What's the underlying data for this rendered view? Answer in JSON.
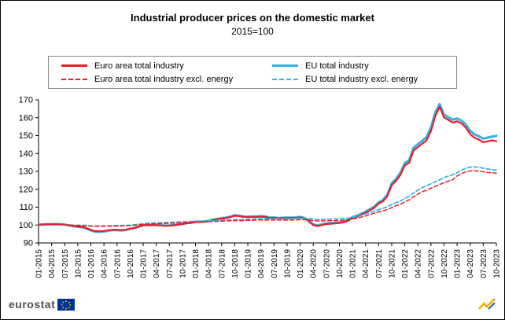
{
  "footer": {
    "brand": "eurostat"
  },
  "chart_data": {
    "type": "line",
    "title": "Industrial producer prices on the domestic market",
    "subtitle": "2015=100",
    "ylim": [
      90,
      170
    ],
    "y_ticks": [
      90,
      100,
      110,
      120,
      130,
      140,
      150,
      160,
      170
    ],
    "grid": false,
    "legend_position": "top",
    "x_unit": "month",
    "tick_step": 3,
    "x_tick_labels": [
      "01-2015",
      "04-2015",
      "07-2015",
      "10-2015",
      "01-2016",
      "04-2016",
      "07-2016",
      "10-2016",
      "01-2017",
      "04-2017",
      "07-2017",
      "10-2017",
      "01-2018",
      "04-2018",
      "07-2018",
      "10-2018",
      "01-2019",
      "04-2019",
      "07-2019",
      "10-2019",
      "01-2020",
      "04-2020",
      "07-2020",
      "10-2020",
      "01-2021",
      "04-2021",
      "07-2021",
      "10-2021",
      "01-2022",
      "04-2022",
      "07-2022",
      "10-2022",
      "01-2023",
      "04-2023",
      "07-2023",
      "10-2023"
    ],
    "series": [
      {
        "name": "Euro area total industry",
        "color": "#ed1c24",
        "dash": false,
        "width": 2.2,
        "values": [
          100.2,
          100.4,
          100.5,
          100.5,
          100.6,
          100.5,
          100.3,
          99.9,
          99.5,
          99.2,
          99.0,
          98.3,
          97.3,
          96.6,
          96.6,
          96.7,
          97.1,
          97.4,
          97.3,
          97.2,
          97.4,
          98.0,
          98.4,
          99.2,
          99.9,
          100.0,
          99.9,
          100.0,
          99.8,
          99.6,
          99.7,
          99.9,
          100.2,
          100.6,
          101.0,
          101.2,
          101.7,
          101.7,
          101.8,
          102.1,
          102.8,
          103.2,
          103.6,
          103.9,
          104.4,
          105.2,
          105.0,
          104.5,
          104.4,
          104.5,
          104.5,
          104.7,
          104.5,
          103.9,
          104.0,
          103.7,
          103.8,
          103.9,
          103.9,
          104.0,
          104.3,
          103.7,
          102.1,
          100.0,
          99.4,
          100.0,
          100.6,
          100.7,
          100.9,
          101.1,
          101.5,
          102.4,
          104.0,
          104.6,
          105.8,
          106.9,
          108.3,
          109.7,
          112.0,
          113.3,
          116.1,
          122.4,
          124.7,
          128.1,
          133.3,
          134.8,
          141.7,
          143.6,
          145.5,
          147.3,
          152.7,
          161.0,
          166.2,
          160.2,
          158.8,
          157.3,
          158.0,
          156.8,
          154.5,
          150.8,
          148.8,
          147.8,
          146.3,
          146.8,
          147.3,
          146.9
        ]
      },
      {
        "name": "EU total industry",
        "color": "#33b3e5",
        "dash": false,
        "width": 3,
        "values": [
          100.2,
          100.3,
          100.4,
          100.4,
          100.5,
          100.4,
          100.2,
          99.8,
          99.4,
          99.0,
          98.8,
          98.1,
          97.0,
          96.3,
          96.2,
          96.4,
          96.8,
          97.2,
          97.1,
          97.0,
          97.2,
          97.9,
          98.3,
          99.1,
          99.9,
          100.1,
          100.0,
          100.1,
          99.9,
          99.7,
          99.8,
          100.0,
          100.3,
          100.7,
          101.1,
          101.4,
          101.9,
          101.9,
          102.0,
          102.3,
          103.0,
          103.5,
          103.9,
          104.2,
          104.7,
          105.5,
          105.3,
          104.8,
          104.7,
          104.8,
          104.8,
          105.0,
          104.8,
          104.2,
          104.3,
          104.0,
          104.1,
          104.2,
          104.2,
          104.3,
          104.6,
          104.0,
          102.4,
          100.4,
          99.8,
          100.4,
          101.0,
          101.1,
          101.3,
          101.5,
          101.9,
          102.8,
          104.5,
          105.1,
          106.3,
          107.5,
          108.9,
          110.3,
          112.7,
          114.1,
          117.0,
          123.4,
          125.8,
          129.3,
          134.6,
          136.2,
          143.2,
          145.2,
          147.2,
          149.1,
          154.6,
          163.0,
          167.6,
          161.8,
          160.3,
          158.9,
          159.6,
          158.4,
          156.2,
          152.6,
          150.7,
          149.7,
          148.3,
          148.9,
          149.5,
          149.9
        ]
      },
      {
        "name": "Euro area total industry excl. energy",
        "color": "#ed1c24",
        "dash": true,
        "width": 1.5,
        "values": [
          100.1,
          100.1,
          100.2,
          100.2,
          100.2,
          100.2,
          100.1,
          100.0,
          99.9,
          99.8,
          99.7,
          99.6,
          99.4,
          99.3,
          99.3,
          99.3,
          99.4,
          99.4,
          99.4,
          99.5,
          99.6,
          99.7,
          99.9,
          100.1,
          100.4,
          100.6,
          100.7,
          100.8,
          100.9,
          100.9,
          101.0,
          101.1,
          101.2,
          101.3,
          101.4,
          101.5,
          101.6,
          101.7,
          101.8,
          101.9,
          102.0,
          102.1,
          102.2,
          102.3,
          102.4,
          102.5,
          102.5,
          102.5,
          102.6,
          102.7,
          102.8,
          102.9,
          102.9,
          102.8,
          102.8,
          102.8,
          102.8,
          102.8,
          102.8,
          102.9,
          103.0,
          103.0,
          102.9,
          102.5,
          102.3,
          102.3,
          102.4,
          102.5,
          102.5,
          102.6,
          102.7,
          102.9,
          103.4,
          103.8,
          104.4,
          105.1,
          105.9,
          106.6,
          107.3,
          108.0,
          108.7,
          109.8,
          110.8,
          111.6,
          113.0,
          114.1,
          115.8,
          117.3,
          118.6,
          119.6,
          120.6,
          121.6,
          122.6,
          123.7,
          124.6,
          125.3,
          127.5,
          128.8,
          129.8,
          130.3,
          130.4,
          130.2,
          129.8,
          129.4,
          129.2,
          129.0
        ]
      },
      {
        "name": "EU total industry excl. energy",
        "color": "#33b3e5",
        "dash": true,
        "width": 1.7,
        "values": [
          100.1,
          100.1,
          100.2,
          100.2,
          100.3,
          100.3,
          100.2,
          100.1,
          100.0,
          99.9,
          99.9,
          99.8,
          99.6,
          99.5,
          99.5,
          99.5,
          99.6,
          99.7,
          99.7,
          99.8,
          99.9,
          100.0,
          100.2,
          100.4,
          100.8,
          101.0,
          101.1,
          101.2,
          101.3,
          101.4,
          101.5,
          101.6,
          101.7,
          101.8,
          101.9,
          102.0,
          102.1,
          102.2,
          102.3,
          102.4,
          102.5,
          102.6,
          102.7,
          102.8,
          102.9,
          103.0,
          103.1,
          103.1,
          103.2,
          103.3,
          103.4,
          103.5,
          103.5,
          103.5,
          103.5,
          103.5,
          103.5,
          103.5,
          103.6,
          103.7,
          103.8,
          103.8,
          103.7,
          103.3,
          103.1,
          103.1,
          103.2,
          103.3,
          103.4,
          103.5,
          103.6,
          103.8,
          104.3,
          104.8,
          105.4,
          106.2,
          107.0,
          107.8,
          108.6,
          109.4,
          110.2,
          111.4,
          112.5,
          113.4,
          114.9,
          116.1,
          117.9,
          119.5,
          120.9,
          122.0,
          123.1,
          124.2,
          125.3,
          126.5,
          127.4,
          128.1,
          129.3,
          130.6,
          131.8,
          132.4,
          132.6,
          132.3,
          131.8,
          131.3,
          131.0,
          130.7
        ]
      }
    ]
  }
}
